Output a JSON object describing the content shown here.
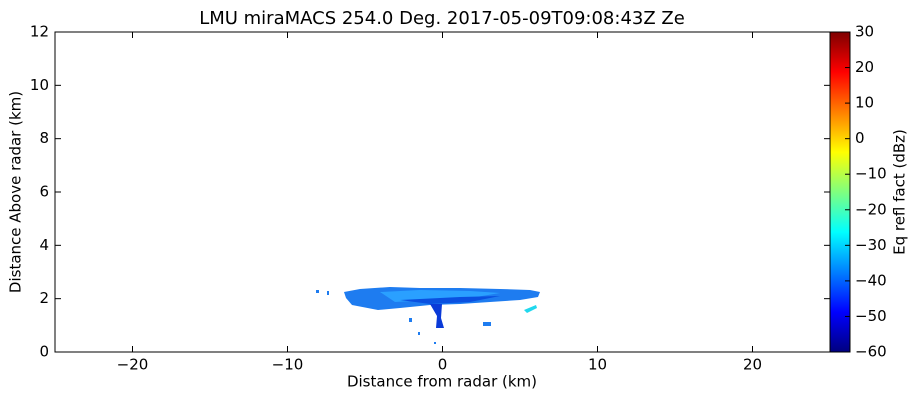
{
  "chart_data": {
    "type": "heatmap",
    "title": "LMU miraMACS 254.0 Deg. 2017-05-09T09:08:43Z  Ze",
    "x_label": "Distance from radar (km)",
    "y_label": "Distance Above radar  (km)",
    "xlim": [
      -25,
      25
    ],
    "xticks": [
      {
        "value": -20,
        "label": "−20"
      },
      {
        "value": -10,
        "label": "−10"
      },
      0,
      10,
      20
    ],
    "ylim": [
      0,
      12
    ],
    "yticks": [
      0,
      2,
      4,
      6,
      8,
      10,
      12
    ],
    "colormap": "jet",
    "colorbar": {
      "label": "Eq refl fact (dBz)",
      "lim": [
        -60,
        30
      ],
      "ticks": [
        {
          "value": -60,
          "label": "−60"
        },
        {
          "value": -50,
          "label": "−50"
        },
        {
          "value": -40,
          "label": "−40"
        },
        {
          "value": -30,
          "label": "−30"
        },
        {
          "value": -20,
          "label": "−20"
        },
        {
          "value": -10,
          "label": "−10"
        },
        0,
        10,
        20,
        30
      ]
    }
  }
}
